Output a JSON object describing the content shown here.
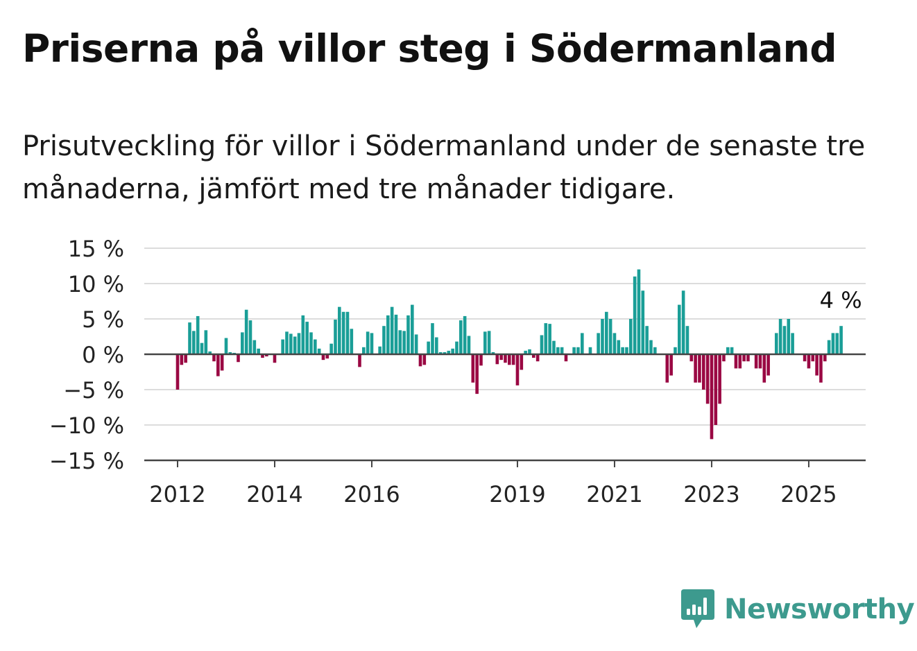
{
  "title": "Priserna på villor steg i Södermanland",
  "subtitle": "Prisutveckling för villor i Södermanland under de senaste tre månaderna, jämfört med tre månader tidigare.",
  "brand": {
    "name": "Newsworthy"
  },
  "colors": {
    "positive": "#1a9e97",
    "negative": "#9a0843",
    "brand": "#3d9a8e"
  },
  "chart_data": {
    "type": "bar",
    "title": "Priserna på villor steg i Södermanland",
    "ylim": [
      -15,
      15
    ],
    "y_ticks": [
      15,
      10,
      5,
      0,
      -5,
      -10,
      -15
    ],
    "y_tick_labels": [
      "15 %",
      "10 %",
      "5 %",
      "0 %",
      "−5 %",
      "−10 %",
      "−15 %"
    ],
    "x_tick_labels": [
      "2012",
      "2014",
      "2016",
      "2019",
      "2021",
      "2023",
      "2025"
    ],
    "x_tick_years": [
      2012,
      2014,
      2016,
      2019,
      2021,
      2023,
      2025
    ],
    "start": "2012-01",
    "grid": true,
    "annotation": {
      "text": "4 %",
      "target": "last"
    },
    "values": [
      -5,
      -1.5,
      -1.2,
      4.5,
      3.3,
      5.4,
      1.6,
      3.4,
      0.4,
      -1,
      -3.1,
      -2.3,
      2.3,
      0.3,
      0.2,
      -1.1,
      3.1,
      6.3,
      4.8,
      2,
      0.8,
      -0.5,
      -0.3,
      0.1,
      -1.2,
      0,
      2.1,
      3.2,
      2.9,
      2.5,
      3,
      5.5,
      4.6,
      3.1,
      2.1,
      0.8,
      -0.8,
      -0.6,
      1.5,
      4.9,
      6.7,
      6,
      6,
      3.6,
      0,
      -1.8,
      1,
      3.2,
      3,
      0,
      1.1,
      4,
      5.5,
      6.7,
      5.6,
      3.4,
      3.3,
      5.5,
      7,
      2.8,
      -1.7,
      -1.5,
      1.8,
      4.4,
      2.4,
      0.3,
      0.3,
      0.5,
      0.8,
      1.8,
      4.8,
      5.4,
      2.6,
      -4,
      -5.6,
      -1.6,
      3.2,
      3.3,
      0.3,
      -1.4,
      -0.8,
      -1.2,
      -1.5,
      -1.5,
      -4.4,
      -2.2,
      0.5,
      0.7,
      -0.5,
      -1,
      2.7,
      4.4,
      4.3,
      1.9,
      1,
      1,
      -1,
      0,
      1,
      1,
      3,
      0,
      1,
      0,
      3,
      5,
      6,
      5,
      3,
      2,
      1,
      1,
      5,
      11,
      12,
      9,
      4,
      2,
      1,
      0,
      0,
      -4,
      -3,
      1,
      7,
      9,
      4,
      -1,
      -4,
      -4,
      -5,
      -7,
      -12,
      -10,
      -7,
      -1,
      1,
      1,
      -2,
      -2,
      -1,
      -1,
      0,
      -2,
      -2,
      -4,
      -3,
      0,
      3,
      5,
      4,
      5,
      3,
      0,
      0,
      -1,
      -2,
      -1,
      -3,
      -4,
      -1,
      2,
      3,
      3,
      4
    ]
  }
}
